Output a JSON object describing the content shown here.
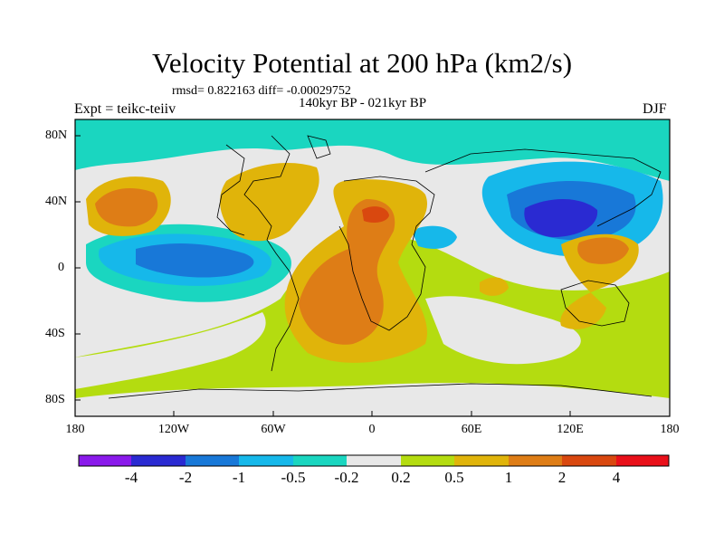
{
  "figure": {
    "title": "Velocity Potential at 200 hPa (km2/s)",
    "stats": "rmsd= 0.822163 diff= -0.00029752",
    "subtitle": "140kyr BP - 021kyr BP",
    "left_label": "Expt = teikc-teiiv",
    "right_label": "DJF"
  },
  "axes": {
    "lat_ticks": [
      "80N",
      "40N",
      "0",
      "40S",
      "80S"
    ],
    "lon_ticks": [
      "180",
      "120W",
      "60W",
      "0",
      "60E",
      "120E",
      "180"
    ]
  },
  "colorbar": {
    "labels": [
      "-4",
      "-2",
      "-1",
      "-0.5",
      "-0.2",
      "0.2",
      "0.5",
      "1",
      "2",
      "4"
    ],
    "colors": [
      "#8a1aeb",
      "#2a2ad2",
      "#1878d8",
      "#16b8ea",
      "#1ad6c0",
      "#e8e8e8",
      "#b4dc10",
      "#e0b40a",
      "#de7d16",
      "#d9480f",
      "#e9101a"
    ]
  },
  "palette": {
    "neg4": "#2a2ad2",
    "neg2": "#1878d8",
    "neg1": "#16b8ea",
    "neg05": "#1ad6c0",
    "zero": "#e8e8e8",
    "pos02": "#b4dc10",
    "pos05": "#e0b40a",
    "pos1": "#de7d16",
    "pos2": "#d9480f"
  }
}
